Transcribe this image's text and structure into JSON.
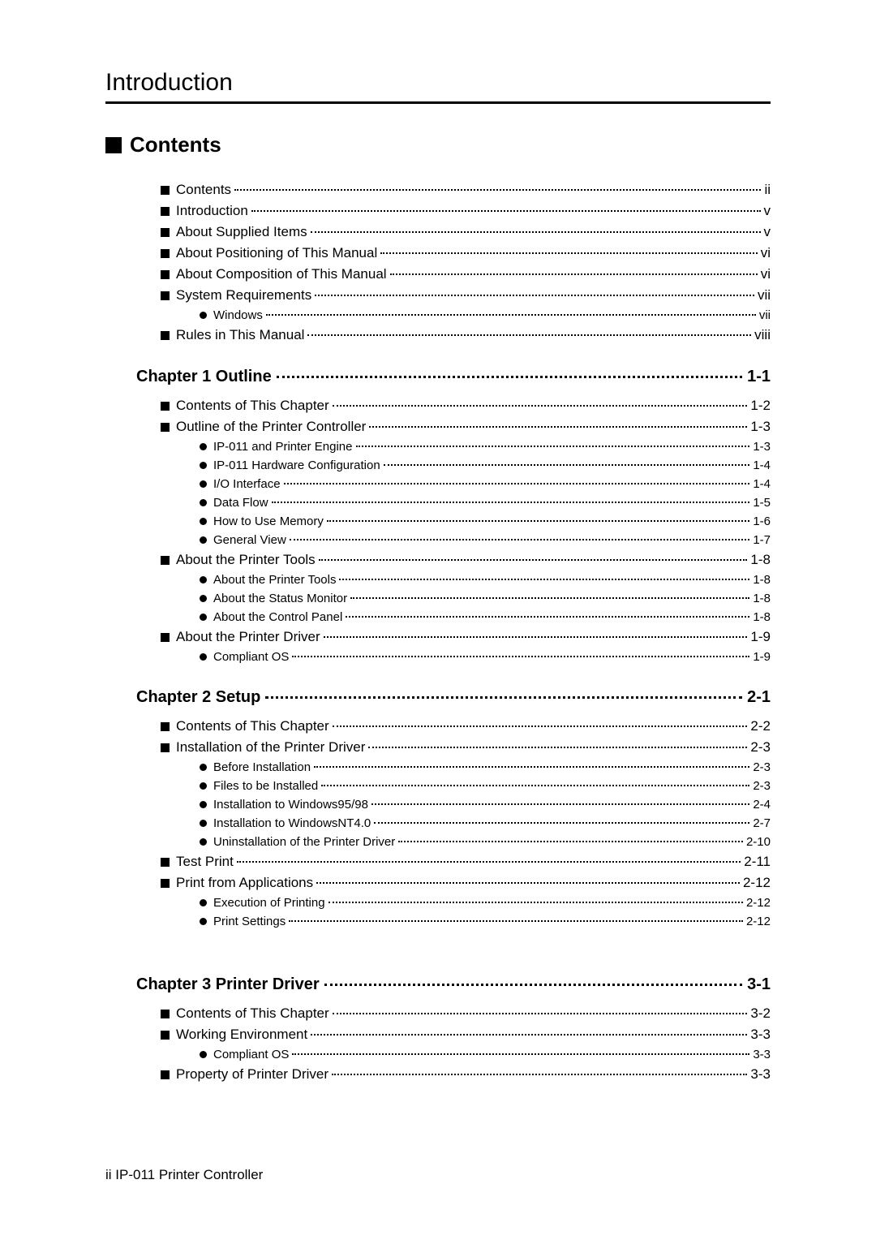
{
  "header": {
    "title": "Introduction"
  },
  "section": {
    "title": "Contents"
  },
  "front": [
    {
      "label": "Contents",
      "page": "ii"
    },
    {
      "label": "Introduction",
      "page": "v"
    },
    {
      "label": "About Supplied Items",
      "page": "v"
    },
    {
      "label": "About Positioning of This Manual",
      "page": "vi"
    },
    {
      "label": "About Composition of This Manual",
      "page": "vi"
    },
    {
      "label": "System Requirements",
      "page": "vii",
      "children": [
        {
          "label": "Windows",
          "page": "vii"
        }
      ]
    },
    {
      "label": "Rules in This Manual",
      "page": "viii"
    }
  ],
  "chapters": [
    {
      "title": "Chapter 1 Outline",
      "page": "1-1",
      "items": [
        {
          "label": "Contents of This Chapter",
          "page": "1-2"
        },
        {
          "label": "Outline of the Printer Controller",
          "page": "1-3",
          "children": [
            {
              "label": "IP-011 and Printer Engine",
              "page": "1-3"
            },
            {
              "label": "IP-011 Hardware Configuration",
              "page": "1-4"
            },
            {
              "label": "I/O Interface",
              "page": "1-4"
            },
            {
              "label": "Data Flow",
              "page": "1-5"
            },
            {
              "label": "How to Use Memory",
              "page": "1-6"
            },
            {
              "label": "General View",
              "page": "1-7"
            }
          ]
        },
        {
          "label": "About the Printer Tools",
          "page": "1-8",
          "children": [
            {
              "label": "About the Printer Tools",
              "page": "1-8"
            },
            {
              "label": "About the Status Monitor",
              "page": "1-8"
            },
            {
              "label": "About the Control Panel",
              "page": "1-8"
            }
          ]
        },
        {
          "label": "About the Printer Driver",
          "page": "1-9",
          "children": [
            {
              "label": "Compliant OS",
              "page": "1-9"
            }
          ]
        }
      ]
    },
    {
      "title": "Chapter 2 Setup",
      "page": "2-1",
      "items": [
        {
          "label": "Contents of This Chapter",
          "page": "2-2"
        },
        {
          "label": "Installation of the Printer Driver",
          "page": "2-3",
          "children": [
            {
              "label": "Before Installation",
              "page": "2-3"
            },
            {
              "label": "Files to be Installed",
              "page": "2-3"
            },
            {
              "label": "Installation to Windows95/98",
              "page": "2-4"
            },
            {
              "label": "Installation to WindowsNT4.0",
              "page": "2-7"
            },
            {
              "label": "Uninstallation of the Printer Driver",
              "page": "2-10"
            }
          ]
        },
        {
          "label": "Test Print",
          "page": "2-11"
        },
        {
          "label": "Print from Applications",
          "page": "2-12",
          "children": [
            {
              "label": "Execution of Printing",
              "page": "2-12"
            },
            {
              "label": "Print Settings",
              "page": "2-12"
            }
          ]
        }
      ]
    },
    {
      "title": "Chapter 3 Printer Driver",
      "page": "3-1",
      "items": [
        {
          "label": "Contents of This Chapter",
          "page": "3-2"
        },
        {
          "label": "Working Environment",
          "page": "3-3",
          "children": [
            {
              "label": "Compliant OS",
              "page": "3-3"
            }
          ]
        },
        {
          "label": "Property of Printer Driver",
          "page": "3-3"
        }
      ]
    }
  ],
  "footer": {
    "text": "ii  IP-011 Printer Controller"
  }
}
